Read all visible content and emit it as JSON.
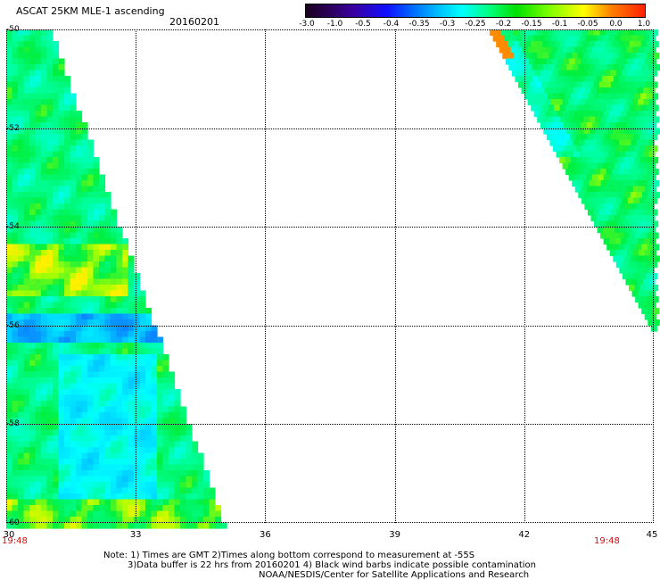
{
  "header": {
    "title": "ASCAT 25KM MLE-1 ascending",
    "date": "20160201"
  },
  "colorbar": {
    "labels": [
      "-3.0",
      "-1.0",
      "-0.5",
      "-0.4",
      "-0.35",
      "-0.3",
      "-0.25",
      "-0.2",
      "-0.15",
      "-0.1",
      "-0.05",
      "0.0",
      "1.0"
    ]
  },
  "axes": {
    "y_labels": [
      "-50",
      "-52",
      "-54",
      "-56",
      "-58",
      "-60"
    ],
    "x_labels": [
      "30",
      "33",
      "36",
      "39",
      "42",
      "45"
    ]
  },
  "times": {
    "left": "19:48",
    "right": "19:48"
  },
  "notes": {
    "line1": "Note: 1) Times are GMT 2)Times along bottom correspond to measurement at -55S",
    "line2": "3)Data buffer is 22 hrs from 20160201 4) Black wind barbs indicate possible contamination",
    "line3": "NOAA/NESDIS/Center for Satellite Applications and Research"
  },
  "chart_data": {
    "type": "heatmap",
    "title": "ASCAT 25KM MLE-1 ascending",
    "date": "20160201",
    "xlim": [
      30,
      45
    ],
    "ylim": [
      -60,
      -50
    ],
    "swaths": [
      {
        "name": "west swath",
        "lon_range": [
          30,
          35
        ],
        "lat_range": [
          -60,
          -50
        ],
        "dominant_values": [
          "-0.3",
          "-0.25",
          "-0.2"
        ],
        "min_region_value": "-0.4",
        "max_region_value": "-0.1"
      },
      {
        "name": "east swath",
        "lon_range": [
          41,
          45
        ],
        "lat_range": [
          -56,
          -50
        ],
        "dominant_values": [
          "-0.25",
          "-0.2"
        ],
        "max_region_value": "-0.05"
      }
    ],
    "colors": {
      "blue": "#1060ff",
      "cyan": "#00ffff",
      "aqua_green": "#00ffa0",
      "green": "#00f040",
      "yellow_green": "#b0ff00",
      "orange": "#ff8000"
    }
  }
}
